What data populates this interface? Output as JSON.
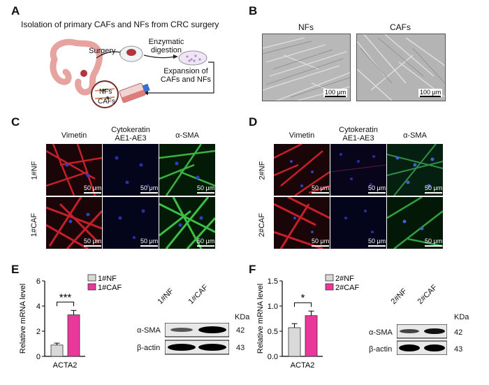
{
  "panelA": {
    "letter": "A",
    "title": "Isolation of primary CAFs and NFs from CRC surgery",
    "surgery": "Surgery",
    "enzymatic_1": "Enzymatic",
    "enzymatic_2": "digestion",
    "expansion_1": "Expansion of",
    "expansion_2": "CAFs and NFs",
    "nfs": "NFs",
    "cafs": "CAFs"
  },
  "panelB": {
    "letter": "B",
    "left_label": "NFs",
    "right_label": "CAFs",
    "scale_left": "100 μm",
    "scale_right": "100 μm"
  },
  "panelC": {
    "letter": "C",
    "col1": "Vimetin",
    "col2_1": "Cytokeratin",
    "col2_2": "AE1-AE3",
    "col3": "α-SMA",
    "row1": "1#NF",
    "row2": "1#CAF",
    "scale": "50 μm"
  },
  "panelD": {
    "letter": "D",
    "col1": "Vimetin",
    "col2_1": "Cytokeratin",
    "col2_2": "AE1-AE3",
    "col3": "α-SMA",
    "row1": "2#NF",
    "row2": "2#CAF",
    "scale": "50 μm"
  },
  "panelE": {
    "letter": "E",
    "chart_data": {
      "type": "bar",
      "categories": [
        "1#NF",
        "1#CAF"
      ],
      "values": [
        0.9,
        3.3
      ],
      "errors": [
        0.15,
        0.35
      ],
      "colors": [
        "#d9d9d9",
        "#e8399b"
      ],
      "ylabel": "Relative mRNA level",
      "xlabel": "ACTA2",
      "ylim": [
        0,
        6
      ],
      "yticks": [
        0,
        2,
        4,
        6
      ],
      "legend": [
        "1#NF",
        "1#CAF"
      ],
      "significance": "***"
    },
    "blot": {
      "lanes": [
        "1#NF",
        "1#CAF"
      ],
      "kda_label": "KDa",
      "bands": [
        {
          "name": "α-SMA",
          "kda": "42"
        },
        {
          "name": "β-actin",
          "kda": "43"
        }
      ]
    }
  },
  "panelF": {
    "letter": "F",
    "chart_data": {
      "type": "bar",
      "categories": [
        "2#NF",
        "2#CAF"
      ],
      "values": [
        0.57,
        0.81
      ],
      "errors": [
        0.08,
        0.09
      ],
      "colors": [
        "#d9d9d9",
        "#e8399b"
      ],
      "ylabel": "Relative mRNA level",
      "xlabel": "ACTA2",
      "ylim": [
        0,
        1.5
      ],
      "yticks": [
        "0.0",
        "0.5",
        "1.0",
        "1.5"
      ],
      "legend": [
        "2#NF",
        "2#CAF"
      ],
      "significance": "*"
    },
    "blot": {
      "lanes": [
        "2#NF",
        "2#CAF"
      ],
      "kda_label": "KDa",
      "bands": [
        {
          "name": "α-SMA",
          "kda": "42"
        },
        {
          "name": "β-actin",
          "kda": "43"
        }
      ]
    }
  }
}
